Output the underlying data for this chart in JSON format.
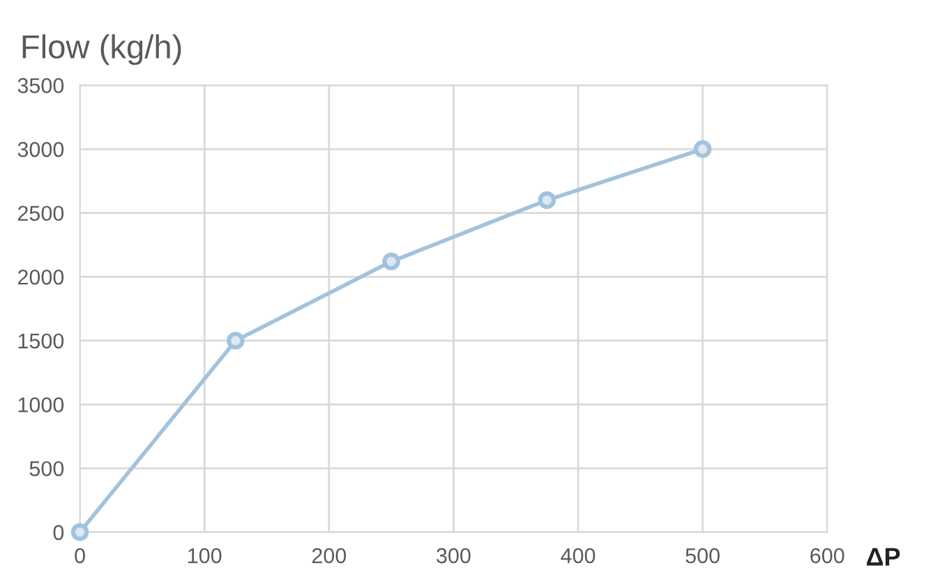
{
  "chart_data": {
    "type": "line",
    "title": "Flow (kg/h)",
    "xlabel": "ΔP",
    "series": [
      {
        "color": "#a3c2dc",
        "x": [
          0,
          125,
          250,
          375,
          500
        ],
        "values": [
          0,
          1500,
          2120,
          2600,
          3000
        ]
      }
    ],
    "xlim": [
      0,
      600
    ],
    "xticks": [
      0,
      100,
      200,
      300,
      400,
      500,
      600
    ],
    "ylim": [
      0,
      3500
    ],
    "yticks": [
      0,
      500,
      1000,
      1500,
      2000,
      2500,
      3000,
      3500
    ],
    "grid": true,
    "marker": "circle",
    "line_style": "solid"
  }
}
